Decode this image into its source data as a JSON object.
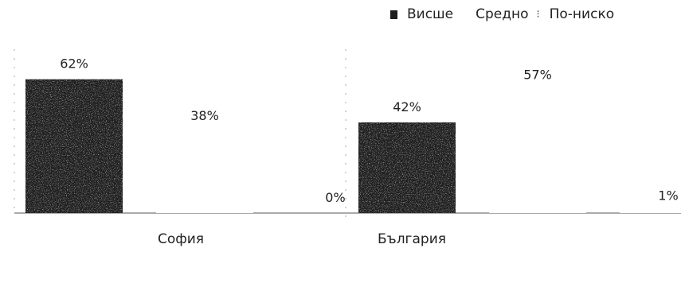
{
  "chart_data": {
    "type": "bar",
    "categories": [
      "София",
      "България"
    ],
    "series": [
      {
        "name": "Висше",
        "values": [
          62,
          42
        ]
      },
      {
        "name": "Средно",
        "values": [
          38,
          57
        ]
      },
      {
        "name": "По-ниско",
        "values": [
          0,
          1
        ]
      }
    ],
    "value_labels": [
      [
        "62%",
        "38%",
        "0%"
      ],
      [
        "42%",
        "57%",
        "1%"
      ]
    ],
    "ylim": [
      0,
      70
    ],
    "grid": false,
    "legend_position": "top-right",
    "colors": {
      "Висше": "#1e1e1e",
      "Средно": "#ffffff",
      "По-ниско": "#ffffff",
      "axis": "#555555",
      "text": "#222222"
    }
  }
}
